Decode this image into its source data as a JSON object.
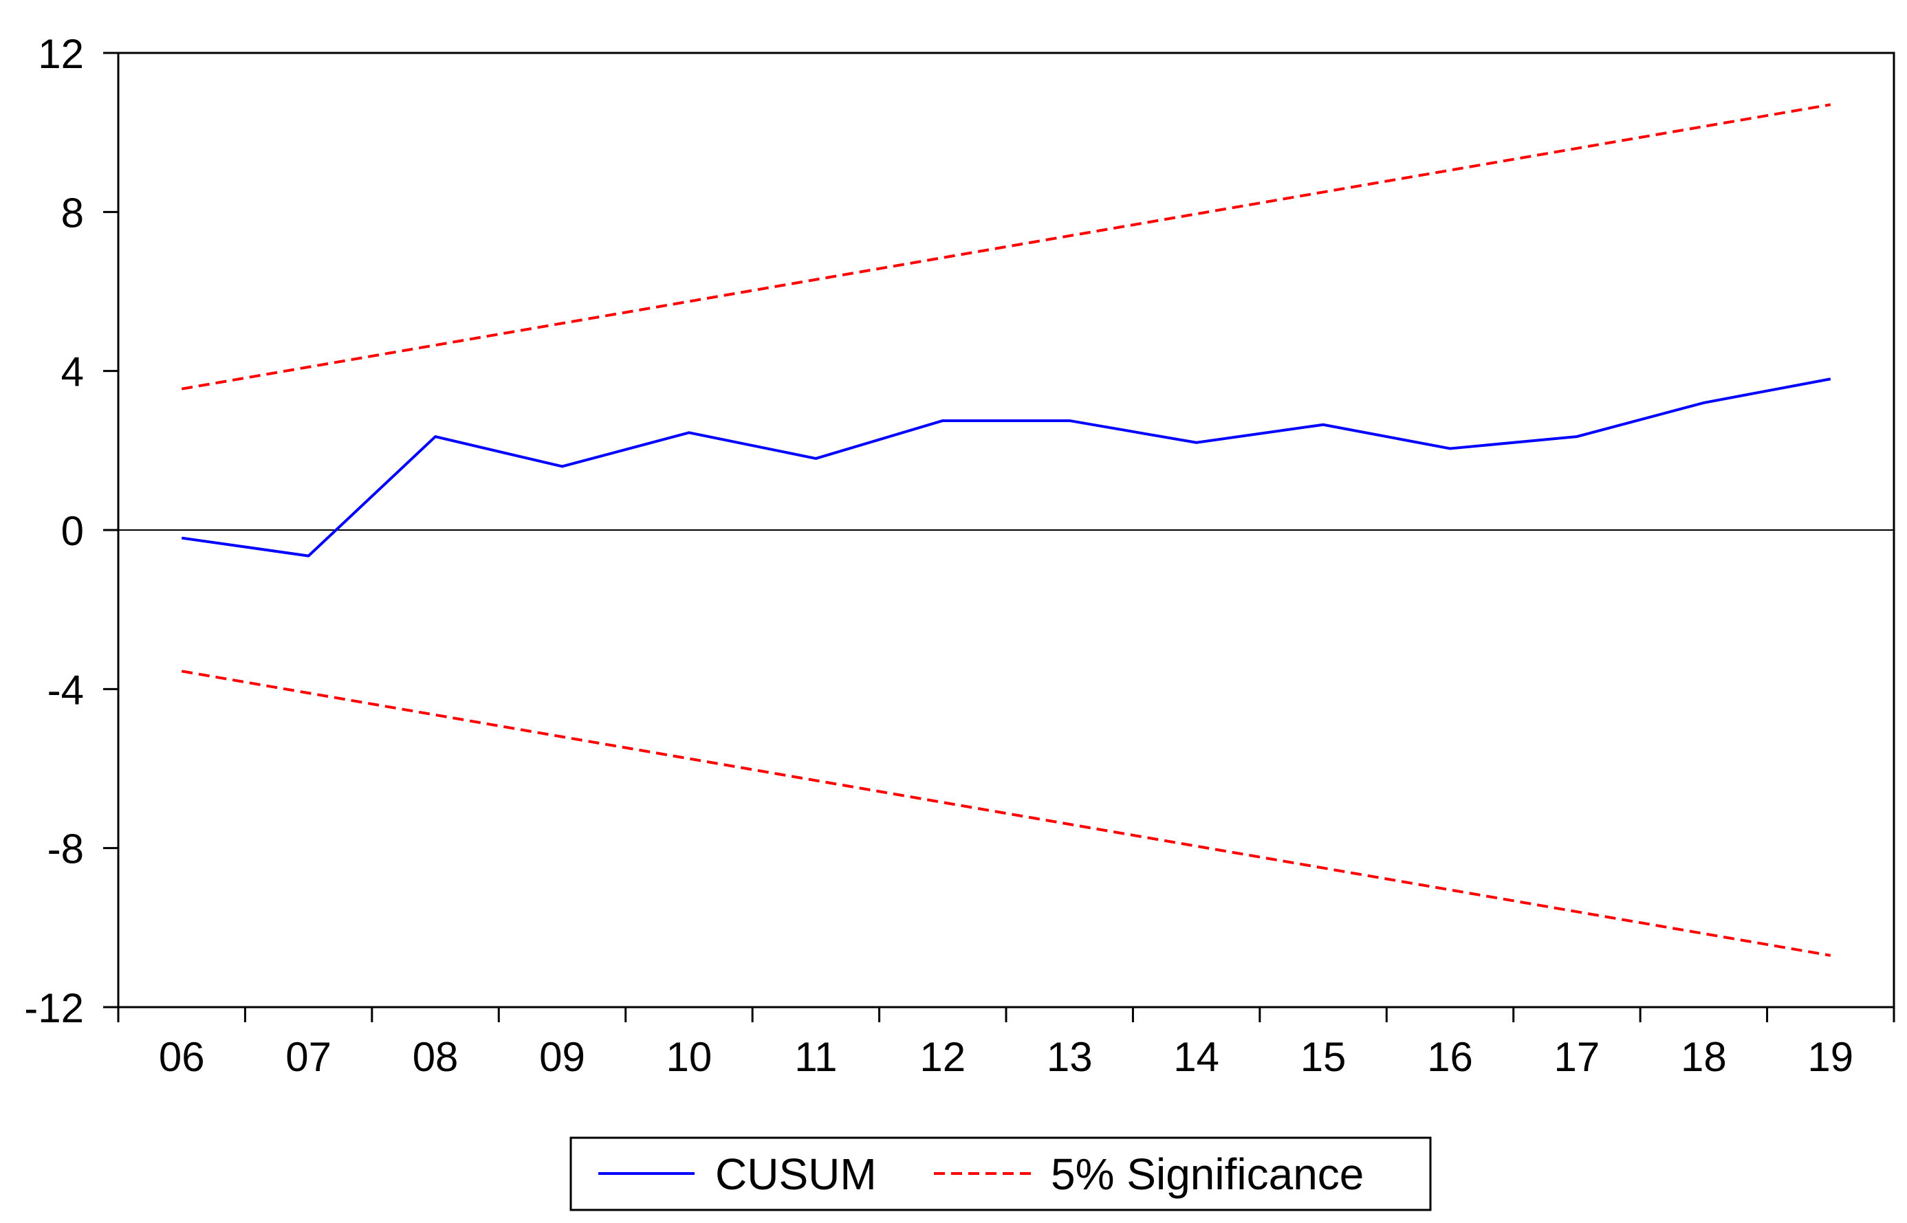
{
  "chart_data": {
    "type": "line",
    "title": "",
    "xlabel": "",
    "ylabel": "",
    "categories": [
      "06",
      "07",
      "08",
      "09",
      "10",
      "11",
      "12",
      "13",
      "14",
      "15",
      "16",
      "17",
      "18",
      "19"
    ],
    "ylim": [
      -12,
      12
    ],
    "yticks": [
      12,
      8,
      4,
      0,
      -4,
      -8,
      -12
    ],
    "ytick_labels": [
      "12",
      "8",
      "4",
      "0",
      "-4",
      "-8",
      "-12"
    ],
    "zero_line": true,
    "grid": false,
    "legend_position": "bottom-center",
    "series": [
      {
        "name": "CUSUM",
        "color": "#0000ff",
        "style": "solid",
        "values": [
          -0.2,
          -0.65,
          2.35,
          1.6,
          2.45,
          1.8,
          2.75,
          2.75,
          2.2,
          2.65,
          2.05,
          2.35,
          3.2,
          3.8
        ]
      },
      {
        "name": "5% Significance",
        "color": "#ff0000",
        "style": "dashed",
        "values": [
          3.55,
          4.1,
          4.65,
          5.2,
          5.75,
          6.3,
          6.85,
          7.4,
          7.95,
          8.5,
          9.05,
          9.6,
          10.15,
          10.7
        ]
      },
      {
        "name": "",
        "color": "#ff0000",
        "style": "dashed",
        "values": [
          -3.55,
          -4.1,
          -4.65,
          -5.2,
          -5.75,
          -6.3,
          -6.85,
          -7.4,
          -7.95,
          -8.5,
          -9.05,
          -9.6,
          -10.15,
          -10.7
        ]
      }
    ],
    "legend": [
      {
        "label": "CUSUM",
        "color": "#0000ff",
        "style": "solid"
      },
      {
        "label": "5% Significance",
        "color": "#ff0000",
        "style": "dashed"
      }
    ]
  }
}
